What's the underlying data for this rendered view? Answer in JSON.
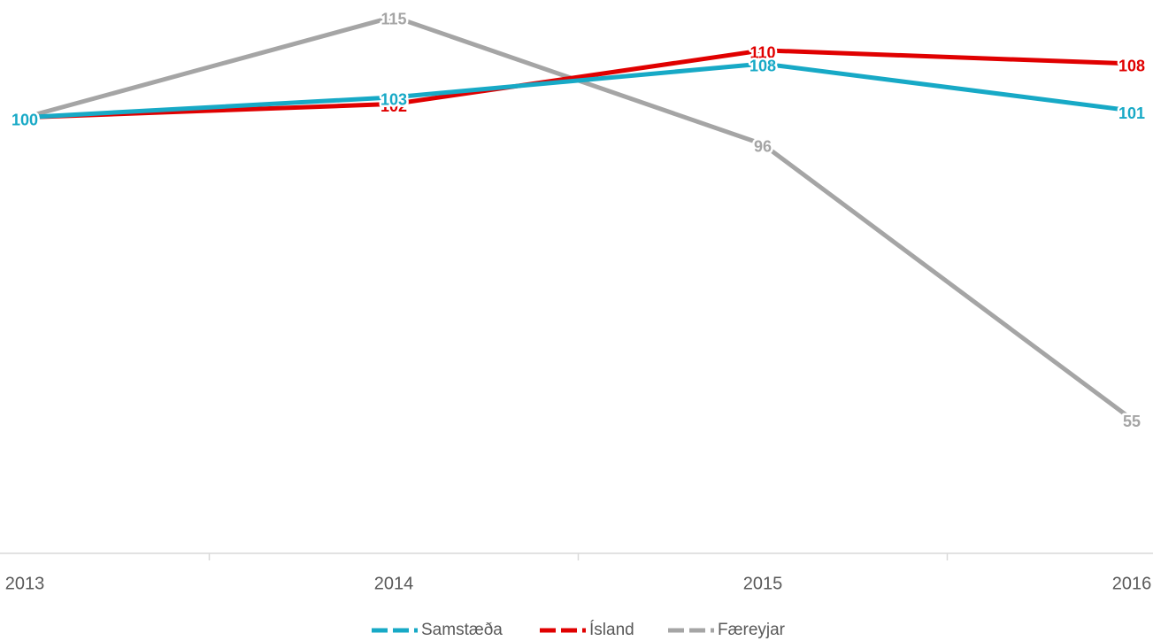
{
  "chart_data": {
    "type": "line",
    "categories": [
      "2013",
      "2014",
      "2015",
      "2016"
    ],
    "series": [
      {
        "name": "Færeyjar",
        "color": "#a5a5a5",
        "values": [
          100,
          115,
          96,
          55
        ]
      },
      {
        "name": "Ísland",
        "color": "#e00000",
        "values": [
          100,
          102,
          110,
          108
        ]
      },
      {
        "name": "Samstæða",
        "color": "#17a9c6",
        "values": [
          100,
          103,
          108,
          101
        ]
      }
    ],
    "ylim": [
      35,
      117.5
    ],
    "legend": "bottom"
  }
}
